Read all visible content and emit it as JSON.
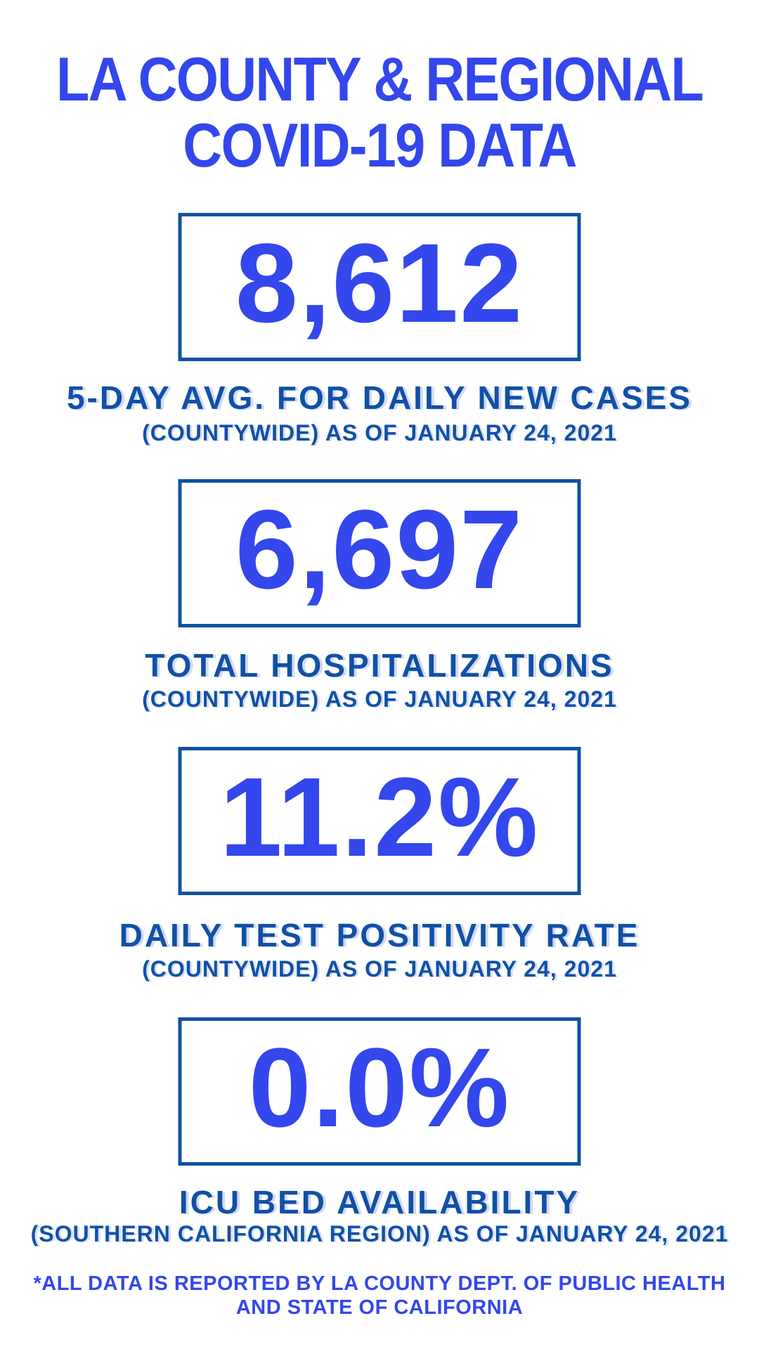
{
  "colors": {
    "accent_bright": "#3347ec",
    "accent_dark": "#1150a6",
    "box_border": "#0f51a5",
    "background": "#ffffff"
  },
  "title": {
    "line1": "LA COUNTY & REGIONAL",
    "line2": "COVID-19 DATA"
  },
  "stats": [
    {
      "value": "8,612",
      "label": "5-DAY AVG. FOR DAILY NEW CASES",
      "sublabel": "(COUNTYWIDE) AS OF JANUARY 24, 2021"
    },
    {
      "value": "6,697",
      "label": "TOTAL HOSPITALIZATIONS",
      "sublabel": "(COUNTYWIDE) AS OF JANUARY 24, 2021"
    },
    {
      "value": "11.2%",
      "label": "DAILY TEST POSITIVITY RATE",
      "sublabel": "(COUNTYWIDE) AS OF JANUARY 24, 2021"
    },
    {
      "value": "0.0%",
      "label": "ICU BED AVAILABILITY",
      "sublabel": "(SOUTHERN CALIFORNIA REGION) AS OF JANUARY 24, 2021"
    }
  ],
  "footer": {
    "line1": "*ALL DATA IS REPORTED BY LA COUNTY DEPT. OF PUBLIC HEALTH",
    "line2": "AND STATE OF CALIFORNIA"
  }
}
